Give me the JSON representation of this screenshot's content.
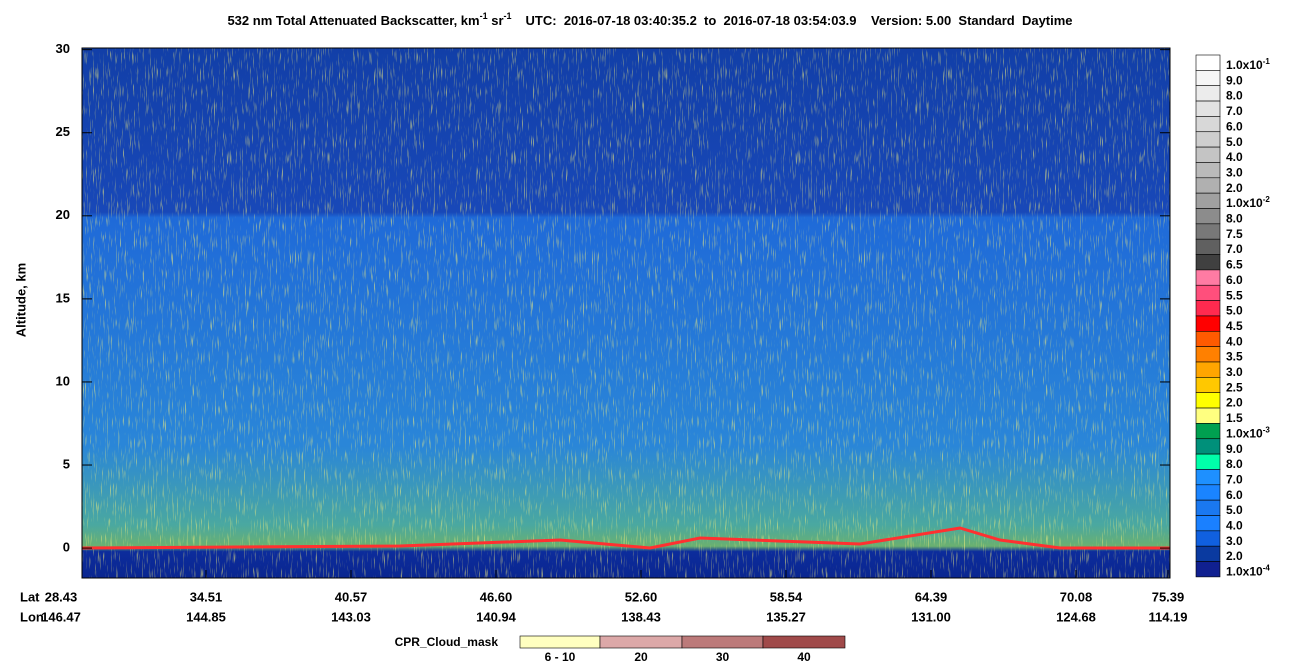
{
  "chart_data": {
    "type": "heatmap",
    "title": [
      {
        "text": "532 nm Total Attenuated Backscatter, km"
      },
      {
        "text": "-1",
        "sup": true
      },
      {
        "text": " sr"
      },
      {
        "text": "-1",
        "sup": true
      },
      {
        "text": "UTC:  2016-07-18 03:40:35.2  to  2016-07-18 03:54:03.9    Version: 5.00  Standard  Daytime"
      }
    ],
    "ylabel": "Altitude, km",
    "ylim": [
      -1.8,
      30.1
    ],
    "yticks": [
      0,
      5,
      10,
      15,
      20,
      25,
      30
    ],
    "lat_title": "Lat",
    "lon_title": "Lon",
    "lat": [
      "28.43",
      "34.51",
      "40.57",
      "46.60",
      "52.60",
      "58.54",
      "64.39",
      "70.08",
      "75.39"
    ],
    "lon": [
      "146.47",
      "144.85",
      "143.03",
      "140.94",
      "138.43",
      "135.27",
      "131.00",
      "124.68",
      "114.19"
    ],
    "colorbar": [
      {
        "label": "1.0x10",
        "exp": "-1",
        "color": "#ffffff"
      },
      {
        "label": "9.0",
        "color": "#f6f6f6"
      },
      {
        "label": "8.0",
        "color": "#ececec"
      },
      {
        "label": "7.0",
        "color": "#e2e2e2"
      },
      {
        "label": "6.0",
        "color": "#d8d8d8"
      },
      {
        "label": "5.0",
        "color": "#cecece"
      },
      {
        "label": "4.0",
        "color": "#c4c4c4"
      },
      {
        "label": "3.0",
        "color": "#bababa"
      },
      {
        "label": "2.0",
        "color": "#b0b0b0"
      },
      {
        "label": "1.0x10",
        "exp": "-2",
        "color": "#a0a0a0"
      },
      {
        "label": "8.0",
        "color": "#8c8c8c"
      },
      {
        "label": "7.5",
        "color": "#787878"
      },
      {
        "label": "7.0",
        "color": "#606060"
      },
      {
        "label": "6.5",
        "color": "#404040"
      },
      {
        "label": "6.0",
        "color": "#ff7ba3"
      },
      {
        "label": "5.5",
        "color": "#ff4f7c"
      },
      {
        "label": "5.0",
        "color": "#ff2a4f"
      },
      {
        "label": "4.5",
        "color": "#ff0000"
      },
      {
        "label": "4.0",
        "color": "#ff5a00"
      },
      {
        "label": "3.5",
        "color": "#ff8000"
      },
      {
        "label": "3.0",
        "color": "#ffa500"
      },
      {
        "label": "2.5",
        "color": "#ffc800"
      },
      {
        "label": "2.0",
        "color": "#ffff00"
      },
      {
        "label": "1.5",
        "color": "#ffff80"
      },
      {
        "label": "1.0x10",
        "exp": "-3",
        "color": "#00a050"
      },
      {
        "label": "9.0",
        "color": "#00907a"
      },
      {
        "label": "8.0",
        "color": "#00ffaa"
      },
      {
        "label": "7.0",
        "color": "#1e90ff"
      },
      {
        "label": "6.0",
        "color": "#1a84ff"
      },
      {
        "label": "5.0",
        "color": "#1a78f0"
      },
      {
        "label": "4.0",
        "color": "#1a80ff"
      },
      {
        "label": "3.0",
        "color": "#1060e0"
      },
      {
        "label": "2.0",
        "color": "#0a3aa0"
      },
      {
        "label": "1.0x10",
        "exp": "-4",
        "color": "#102090"
      }
    ],
    "cpr_title": "CPR_Cloud_mask",
    "cpr": [
      {
        "label": "6 - 10",
        "color": "#ffffc0"
      },
      {
        "label": "20",
        "color": "#dca8a8"
      },
      {
        "label": "30",
        "color": "#bc7a7a"
      },
      {
        "label": "40",
        "color": "#a04a4a"
      }
    ]
  }
}
